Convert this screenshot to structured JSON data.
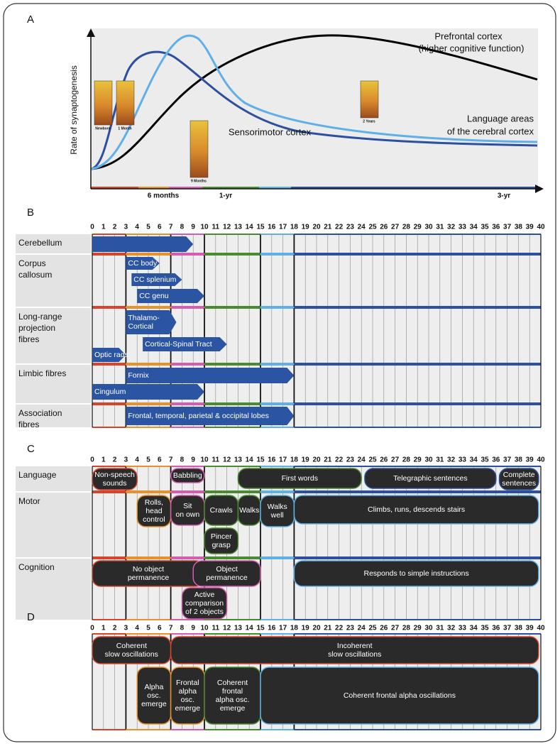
{
  "panel_a": {
    "letter": "A",
    "y_axis_label": "Rate of synaptogenesis",
    "prefrontal_label": [
      "Prefrontal cortex",
      "(higher cognitive function)"
    ],
    "language_label": [
      "Language areas",
      "of the cerebral cortex"
    ],
    "sensorimotor_label": "Sensorimotor cortex",
    "images": [
      "Newborn",
      "1 Month",
      "9 Months",
      "2 Years"
    ],
    "x_labels": [
      "6 months",
      "1-yr",
      "3-yr"
    ]
  },
  "months": [
    0,
    1,
    2,
    3,
    4,
    5,
    6,
    7,
    8,
    9,
    10,
    11,
    12,
    13,
    14,
    15,
    16,
    17,
    18,
    19,
    20,
    21,
    22,
    23,
    24,
    25,
    26,
    27,
    28,
    29,
    30,
    31,
    32,
    33,
    34,
    35,
    36,
    37,
    38,
    39,
    40
  ],
  "phases": [
    {
      "start": 0,
      "end": 3,
      "color": "#d8432c"
    },
    {
      "start": 3,
      "end": 7,
      "color": "#e8902a"
    },
    {
      "start": 7,
      "end": 10,
      "color": "#d65cb0"
    },
    {
      "start": 10,
      "end": 15,
      "color": "#4a8a30"
    },
    {
      "start": 15,
      "end": 18,
      "color": "#5fb0e8"
    },
    {
      "start": 18,
      "end": 40,
      "color": "#2d4fa0"
    }
  ],
  "panel_b": {
    "letter": "B",
    "rows": [
      {
        "label": [
          "Cerebellum"
        ],
        "items": [
          {
            "start": 0,
            "end": 9
          }
        ]
      },
      {
        "label": [
          "Corpus",
          "callosum"
        ],
        "items": [
          {
            "label": [
              "CC body"
            ],
            "start": 3,
            "end": 6
          },
          {
            "label": [
              "CC splenium"
            ],
            "start": 3.5,
            "end": 8
          },
          {
            "label": [
              "CC genu"
            ],
            "start": 4,
            "end": 10
          }
        ]
      },
      {
        "label": [
          "Long-range",
          "projection",
          "fibres"
        ],
        "items": [
          {
            "label": [
              "Thalamo-",
              "Cortical"
            ],
            "start": 3,
            "end": 7.5
          },
          {
            "label": [
              "Cortical-Spinal Tract"
            ],
            "start": 4.5,
            "end": 12
          },
          {
            "label": [
              "Optic rads"
            ],
            "start": 0,
            "end": 3
          }
        ]
      },
      {
        "label": [
          "Limbic fibres"
        ],
        "items": [
          {
            "label": [
              "Fornix"
            ],
            "start": 3,
            "end": 18
          },
          {
            "label": [
              "Cingulum"
            ],
            "start": 0,
            "end": 10
          }
        ]
      },
      {
        "label": [
          "Association",
          "fibres"
        ],
        "items": [
          {
            "label": [
              "Frontal, temporal, parietal & occipital lobes"
            ],
            "start": 3,
            "end": 18
          }
        ]
      }
    ]
  },
  "panel_c": {
    "letter": "C",
    "rows": [
      {
        "label": [
          "Language"
        ],
        "items": [
          {
            "label": [
              "Non-speech",
              "sounds"
            ],
            "start": 0,
            "end": 4,
            "color": "#d8432c"
          },
          {
            "label": [
              "Babbling"
            ],
            "start": 7,
            "end": 10,
            "color": "#d65cb0"
          },
          {
            "label": [
              "First words"
            ],
            "start": 13,
            "end": 24,
            "color": "#4a8a30"
          },
          {
            "label": [
              "Telegraphic sentences"
            ],
            "start": 24.3,
            "end": 36,
            "color": "#2d4fa0"
          },
          {
            "label": [
              "Complete",
              "sentences"
            ],
            "start": 36.3,
            "end": 39.8,
            "color": "#2d4fa0"
          }
        ]
      },
      {
        "label": [
          "Motor"
        ],
        "items": [
          {
            "label": [
              "Rolls,",
              "head",
              "control"
            ],
            "start": 4,
            "end": 7,
            "color": "#e8902a"
          },
          {
            "label": [
              "Sit",
              "on own"
            ],
            "start": 7,
            "end": 10,
            "color": "#d65cb0"
          },
          {
            "label": [
              "Crawls"
            ],
            "start": 10,
            "end": 13,
            "color": "#4a8a30"
          },
          {
            "label": [
              "Walks"
            ],
            "start": 13,
            "end": 15,
            "color": "#4a8a30"
          },
          {
            "label": [
              "Walks",
              "well"
            ],
            "start": 15,
            "end": 18,
            "color": "#5fb0e8"
          },
          {
            "label": [
              "Climbs, runs,  descends stairs"
            ],
            "start": 18,
            "end": 39.8,
            "color": "#5fb0e8"
          },
          {
            "label": [
              "Pincer",
              "grasp"
            ],
            "start": 10,
            "end": 13,
            "color": "#4a8a30"
          }
        ]
      },
      {
        "label": [
          "Cognition"
        ],
        "items": [
          {
            "label": [
              "No object",
              "permanence"
            ],
            "start": 0,
            "end": 10,
            "color": "#d8432c"
          },
          {
            "label": [
              "Object",
              "permanence"
            ],
            "start": 9,
            "end": 15,
            "color": "#d65cb0"
          },
          {
            "label": [
              "Responds to simple instructions"
            ],
            "start": 18,
            "end": 39.8,
            "color": "#5fb0e8"
          },
          {
            "label": [
              "Active",
              "comparison",
              "of 2 objects"
            ],
            "start": 8,
            "end": 12,
            "color": "#d65cb0"
          }
        ]
      }
    ]
  },
  "panel_d": {
    "letter": "D",
    "rows": [
      {
        "items": [
          {
            "label": [
              "Coherent",
              "slow oscillations"
            ],
            "start": 0,
            "end": 7,
            "color": "#d8432c"
          },
          {
            "label": [
              "Incoherent",
              "slow oscillations"
            ],
            "start": 7,
            "end": 39.8,
            "color": "#d8432c"
          },
          {
            "label": [
              "Alpha",
              "osc.",
              "emerge"
            ],
            "start": 4,
            "end": 7,
            "color": "#e8902a"
          },
          {
            "label": [
              "Frontal",
              "alpha",
              "osc.",
              "emerge"
            ],
            "start": 7,
            "end": 10,
            "color": "#e8902a"
          },
          {
            "label": [
              "Coherent",
              "frontal",
              "alpha osc.",
              "emerge"
            ],
            "start": 10,
            "end": 15,
            "color": "#4a8a30"
          },
          {
            "label": [
              "Coherent frontal alpha oscillations"
            ],
            "start": 15,
            "end": 39.8,
            "color": "#5fb0e8"
          }
        ]
      }
    ]
  }
}
